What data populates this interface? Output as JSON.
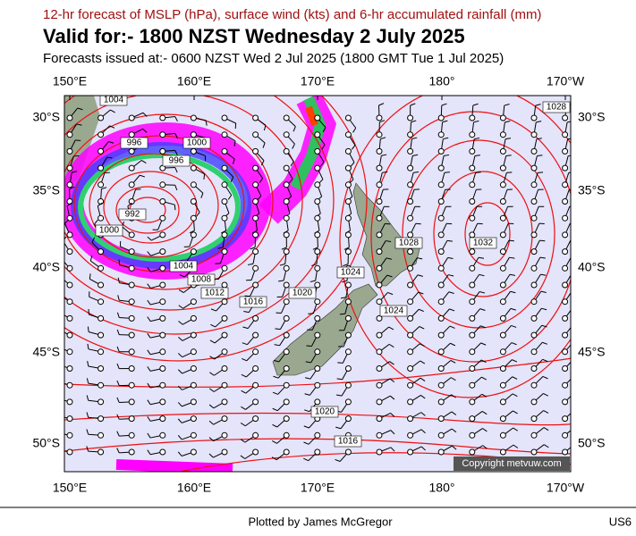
{
  "header": {
    "subtitle": "12-hr forecast of MSLP (hPa), surface wind (kts) and 6-hr accumulated rainfall (mm)",
    "title": "Valid for:- 1800 NZST Wednesday 2 July 2025",
    "issued": "Forecasts issued at:- 0600 NZST Wed 2 Jul 2025 (1800 GMT Tue 1 Jul 2025)"
  },
  "map": {
    "lon_labels": [
      "150°E",
      "160°E",
      "170°E",
      "180°",
      "170°W"
    ],
    "lat_labels": [
      "30°S",
      "35°S",
      "40°S",
      "45°S",
      "50°S"
    ],
    "isobar_labels": [
      "1004",
      "1000",
      "996",
      "996",
      "992",
      "1000",
      "1004",
      "1008",
      "1012",
      "1016",
      "1020",
      "1024",
      "1028",
      "1024",
      "1032",
      "1028",
      "1020",
      "1016"
    ],
    "copyright": "Copyright metvuw.com"
  },
  "footer": {
    "credit": "Plotted by James McGregor",
    "code": "US6"
  }
}
